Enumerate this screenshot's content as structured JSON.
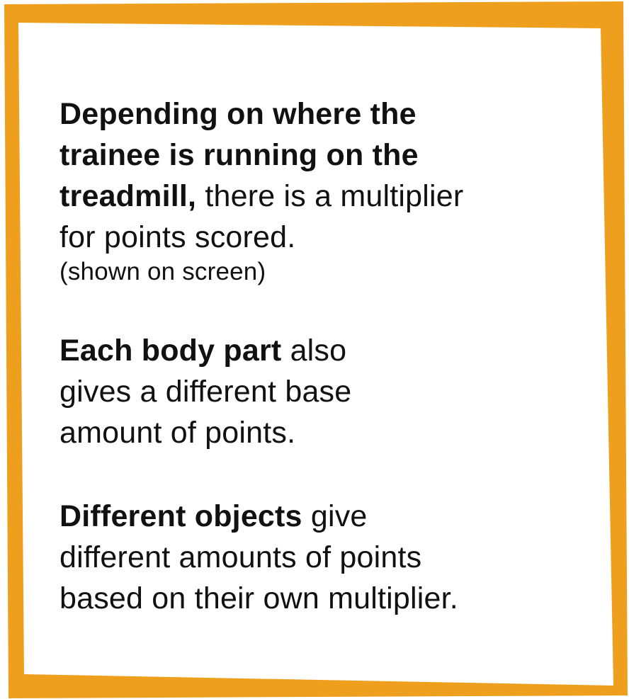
{
  "frame": {
    "border_color": "#EE9F1E",
    "fill_color": "#FFFFFF"
  },
  "paragraphs": [
    {
      "lines": [
        {
          "bold": "Depending on where the",
          "normal": ""
        },
        {
          "bold": "trainee is running on the",
          "normal": ""
        },
        {
          "bold": "treadmill,",
          "normal": " there is a multiplier"
        },
        {
          "bold": "",
          "normal": "for points scored."
        }
      ],
      "note": "(shown on screen)"
    },
    {
      "lines": [
        {
          "bold": "Each body part",
          "normal": " also"
        },
        {
          "bold": "",
          "normal": "gives a different base"
        },
        {
          "bold": "",
          "normal": "amount of points."
        }
      ]
    },
    {
      "lines": [
        {
          "bold": "Different objects",
          "normal": " give"
        },
        {
          "bold": "",
          "normal": "different amounts of points"
        },
        {
          "bold": "",
          "normal": "based on their own multiplier."
        }
      ]
    }
  ]
}
